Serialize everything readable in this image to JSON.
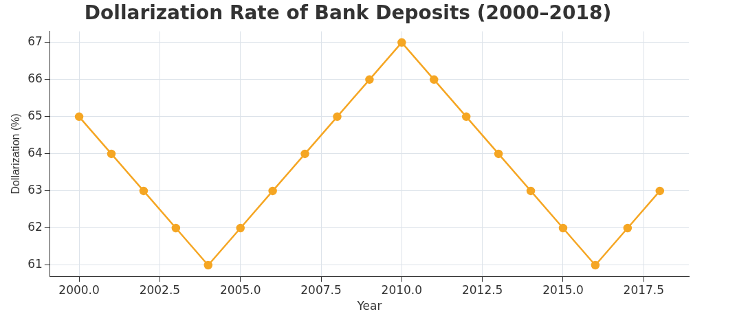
{
  "chart_data": {
    "type": "line",
    "title": "Dollarization Rate of Bank Deposits (2000–2018)",
    "xlabel": "Year",
    "ylabel": "Dollarization (%)",
    "x": [
      2000,
      2001,
      2002,
      2003,
      2004,
      2005,
      2006,
      2007,
      2008,
      2009,
      2010,
      2011,
      2012,
      2013,
      2014,
      2015,
      2016,
      2017,
      2018
    ],
    "series": [
      {
        "color": "#f5a623",
        "values": [
          65,
          64,
          63,
          62,
          61,
          62,
          63,
          64,
          65,
          66,
          67,
          66,
          65,
          64,
          63,
          62,
          61,
          62,
          63
        ]
      }
    ],
    "xlim": [
      1999.1,
      2018.9
    ],
    "xticks": [
      {
        "value": 2000,
        "label": "2000.0"
      },
      {
        "value": 2002.5,
        "label": "2002.5"
      },
      {
        "value": 2005,
        "label": "2005.0"
      },
      {
        "value": 2007.5,
        "label": "2007.5"
      },
      {
        "value": 2010,
        "label": "2010.0"
      },
      {
        "value": 2012.5,
        "label": "2012.5"
      },
      {
        "value": 2015,
        "label": "2015.0"
      },
      {
        "value": 2017.5,
        "label": "2017.5"
      }
    ],
    "ylim": [
      60.7,
      67.3
    ],
    "yticks": [
      61,
      62,
      63,
      64,
      65,
      66,
      67
    ],
    "grid": true,
    "marker": "circle",
    "line_style": "solid"
  }
}
